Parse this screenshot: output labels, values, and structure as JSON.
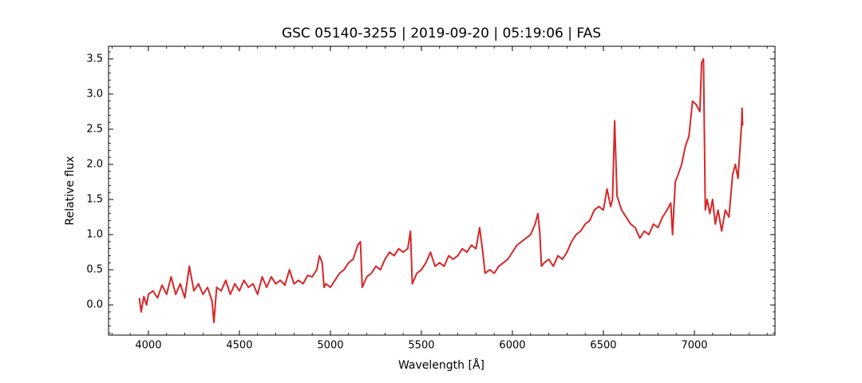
{
  "chart_data": {
    "type": "line",
    "title": "GSC 05140-3255 | 2019-09-20 | 05:19:06 | FAS",
    "xlabel": "Wavelength [Å]",
    "ylabel": "Relative flux",
    "color": "#d62728",
    "x": [
      3950,
      3960,
      3975,
      3990,
      4000,
      4025,
      4050,
      4075,
      4100,
      4125,
      4150,
      4175,
      4200,
      4225,
      4250,
      4275,
      4300,
      4325,
      4350,
      4360,
      4375,
      4400,
      4425,
      4450,
      4475,
      4500,
      4525,
      4550,
      4575,
      4600,
      4625,
      4650,
      4675,
      4700,
      4725,
      4750,
      4775,
      4800,
      4825,
      4850,
      4875,
      4900,
      4925,
      4940,
      4955,
      4965,
      4975,
      5000,
      5025,
      5050,
      5075,
      5100,
      5125,
      5150,
      5165,
      5175,
      5200,
      5225,
      5250,
      5275,
      5300,
      5325,
      5350,
      5375,
      5400,
      5425,
      5440,
      5450,
      5475,
      5500,
      5525,
      5550,
      5575,
      5600,
      5625,
      5650,
      5675,
      5700,
      5725,
      5750,
      5775,
      5800,
      5820,
      5835,
      5850,
      5875,
      5900,
      5925,
      5950,
      5975,
      6000,
      6025,
      6050,
      6075,
      6100,
      6125,
      6140,
      6150,
      6160,
      6175,
      6200,
      6225,
      6250,
      6275,
      6300,
      6325,
      6350,
      6375,
      6400,
      6425,
      6450,
      6475,
      6500,
      6520,
      6540,
      6550,
      6562,
      6575,
      6600,
      6625,
      6650,
      6675,
      6700,
      6725,
      6750,
      6775,
      6800,
      6825,
      6850,
      6870,
      6880,
      6895,
      6910,
      6930,
      6950,
      6970,
      6990,
      7010,
      7030,
      7040,
      7050,
      7060,
      7070,
      7085,
      7100,
      7115,
      7130,
      7150,
      7170,
      7190,
      7210,
      7225,
      7240,
      7250,
      7260,
      7262,
      7265
    ],
    "values": [
      0.1,
      -0.1,
      0.12,
      0.0,
      0.15,
      0.2,
      0.1,
      0.28,
      0.15,
      0.4,
      0.15,
      0.3,
      0.1,
      0.55,
      0.2,
      0.3,
      0.15,
      0.25,
      0.05,
      -0.25,
      0.25,
      0.2,
      0.35,
      0.15,
      0.3,
      0.2,
      0.35,
      0.25,
      0.3,
      0.15,
      0.4,
      0.25,
      0.4,
      0.3,
      0.35,
      0.28,
      0.5,
      0.3,
      0.35,
      0.3,
      0.42,
      0.4,
      0.5,
      0.7,
      0.6,
      0.25,
      0.3,
      0.25,
      0.35,
      0.45,
      0.5,
      0.6,
      0.65,
      0.85,
      0.9,
      0.25,
      0.4,
      0.45,
      0.55,
      0.5,
      0.65,
      0.75,
      0.7,
      0.8,
      0.75,
      0.8,
      1.05,
      0.3,
      0.45,
      0.5,
      0.6,
      0.75,
      0.55,
      0.6,
      0.55,
      0.7,
      0.65,
      0.7,
      0.8,
      0.75,
      0.85,
      0.8,
      1.1,
      0.8,
      0.45,
      0.5,
      0.45,
      0.55,
      0.6,
      0.65,
      0.75,
      0.85,
      0.9,
      0.95,
      1.0,
      1.15,
      1.3,
      1.05,
      0.55,
      0.6,
      0.65,
      0.55,
      0.7,
      0.65,
      0.75,
      0.9,
      1.0,
      1.05,
      1.15,
      1.2,
      1.35,
      1.4,
      1.35,
      1.65,
      1.4,
      1.5,
      2.62,
      1.55,
      1.35,
      1.25,
      1.15,
      1.1,
      0.95,
      1.05,
      1.0,
      1.15,
      1.1,
      1.25,
      1.35,
      1.45,
      1.0,
      1.75,
      1.85,
      2.0,
      2.25,
      2.4,
      2.9,
      2.85,
      2.75,
      3.45,
      3.5,
      1.35,
      1.5,
      1.3,
      1.5,
      1.15,
      1.35,
      1.05,
      1.35,
      1.25,
      1.85,
      2.0,
      1.8,
      2.2,
      2.6,
      2.8,
      2.55
    ],
    "xlim": [
      3781,
      7443
    ],
    "ylim": [
      -0.43,
      3.68
    ],
    "xticks": [
      4000,
      4500,
      5000,
      5500,
      6000,
      6500,
      7000
    ],
    "yticks": [
      {
        "value": 0,
        "label": "0.0"
      },
      0.5,
      {
        "value": 1,
        "label": "1.0"
      },
      1.5,
      {
        "value": 2,
        "label": "2.0"
      },
      2.5,
      {
        "value": 3,
        "label": "3.0"
      },
      3.5
    ],
    "xminorticks": [
      3800,
      3900,
      4100,
      4200,
      4300,
      4400,
      4600,
      4700,
      4800,
      4900,
      5100,
      5200,
      5300,
      5400,
      5600,
      5700,
      5800,
      5900,
      6100,
      6200,
      6300,
      6400,
      6600,
      6700,
      6800,
      6900,
      7100,
      7200,
      7300,
      7400
    ],
    "yminorticks": [
      -0.4,
      -0.3,
      -0.2,
      -0.1,
      0.1,
      0.2,
      0.3,
      0.4,
      0.6,
      0.7,
      0.8,
      0.9,
      1.1,
      1.2,
      1.3,
      1.4,
      1.6,
      1.7,
      1.8,
      1.9,
      2.1,
      2.2,
      2.3,
      2.4,
      2.6,
      2.7,
      2.8,
      2.9,
      3.1,
      3.2,
      3.3,
      3.4,
      3.6
    ]
  }
}
